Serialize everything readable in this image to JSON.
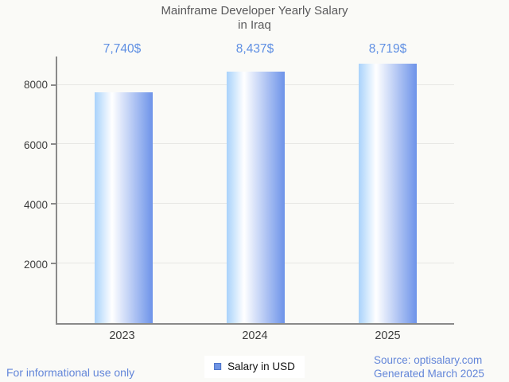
{
  "chart_data": {
    "type": "bar",
    "title": "Mainframe Developer Yearly Salary in Iraq",
    "title_line1": "Mainframe Developer Yearly Salary",
    "title_line2": "in Iraq",
    "categories": [
      "2023",
      "2024",
      "2025"
    ],
    "values": [
      7740,
      8437,
      8719
    ],
    "value_labels": [
      "7,740$",
      "8,437$",
      "8,719$"
    ],
    "series_name": "Salary in USD",
    "xlabel": "",
    "ylabel": "",
    "y_ticks": [
      2000,
      4000,
      6000,
      8000
    ],
    "ylim": [
      0,
      8950
    ],
    "grid": true,
    "legend_position": "bottom-center"
  },
  "legend": {
    "label": "Salary in USD"
  },
  "footer": {
    "disclaimer": "For informational use only",
    "source_line1": "Source: optisalary.com",
    "source_line2": "Generated March 2025"
  },
  "colors": {
    "background": "#fafaf7",
    "title_text": "#59595b",
    "tick_text": "#3d3d3d",
    "axis": "#8a8a8a",
    "gridline": "#e7e7e4",
    "value_label_blue": "#5f8fe3",
    "footer_blue": "#6386d9",
    "bar_gradient_left": "#a9d2fb",
    "bar_gradient_mid": "#ffffff",
    "bar_gradient_right": "#6d93e9",
    "legend_marker_fill": "#6f94e4",
    "legend_marker_border": "#4d74c9"
  }
}
